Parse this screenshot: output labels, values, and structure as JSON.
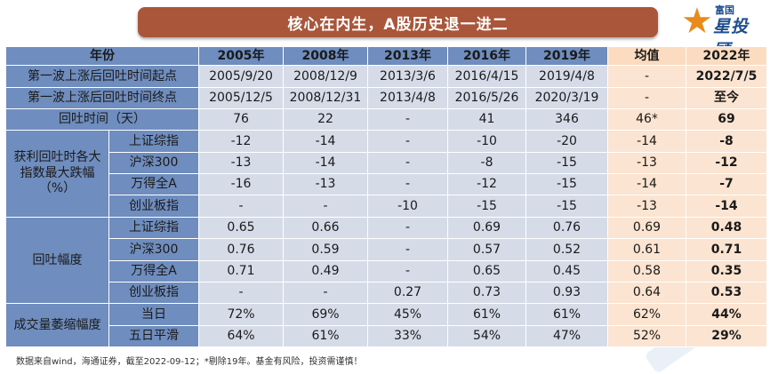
{
  "title": "核心在内生，A股历史退一进二",
  "logo": {
    "line1": "富国",
    "line2": "星投顾",
    "icon": "star-logo-icon"
  },
  "header": [
    "年份",
    "2005年",
    "2008年",
    "2013年",
    "2016年",
    "2019年",
    "均值",
    "2022年"
  ],
  "rows": {
    "start": {
      "label": "第一波上涨后回吐时间起点",
      "values": [
        "2005/9/20",
        "2008/12/9",
        "2013/3/6",
        "2016/4/15",
        "2019/4/8",
        "-",
        "2022/7/5"
      ]
    },
    "end": {
      "label": "第一波上涨后回吐时间终点",
      "values": [
        "2005/12/5",
        "2008/12/31",
        "2013/4/8",
        "2016/5/26",
        "2020/3/19",
        "-",
        "至今"
      ]
    },
    "duration": {
      "label": "回吐时间（天）",
      "values": [
        "76",
        "22",
        "-",
        "41",
        "346",
        "46*",
        "69"
      ]
    }
  },
  "drawdown": {
    "label": "获利回吐时各大指数最大跌幅（%）",
    "rows": [
      {
        "label": "上证综指",
        "values": [
          "-12",
          "-14",
          "-",
          "-10",
          "-20",
          "-14",
          "-8"
        ]
      },
      {
        "label": "沪深300",
        "values": [
          "-13",
          "-14",
          "-",
          "-8",
          "-15",
          "-13",
          "-12"
        ]
      },
      {
        "label": "万得全A",
        "values": [
          "-16",
          "-13",
          "-",
          "-12",
          "-15",
          "-14",
          "-7"
        ]
      },
      {
        "label": "创业板指",
        "values": [
          "-",
          "-",
          "-10",
          "-15",
          "-15",
          "-13",
          "-14"
        ]
      }
    ]
  },
  "retrace": {
    "label": "回吐幅度",
    "rows": [
      {
        "label": "上证综指",
        "values": [
          "0.65",
          "0.66",
          "-",
          "0.69",
          "0.76",
          "0.69",
          "0.48"
        ]
      },
      {
        "label": "沪深300",
        "values": [
          "0.76",
          "0.59",
          "-",
          "0.57",
          "0.52",
          "0.61",
          "0.71"
        ]
      },
      {
        "label": "万得全A",
        "values": [
          "0.71",
          "0.49",
          "-",
          "0.65",
          "0.45",
          "0.58",
          "0.35"
        ]
      },
      {
        "label": "创业板指",
        "values": [
          "-",
          "-",
          "0.27",
          "0.73",
          "0.93",
          "0.64",
          "0.53"
        ]
      }
    ]
  },
  "volume": {
    "label": "成交量萎缩幅度",
    "rows": [
      {
        "label": "当日",
        "values": [
          "72%",
          "69%",
          "45%",
          "61%",
          "61%",
          "62%",
          "44%"
        ]
      },
      {
        "label": "五日平滑",
        "values": [
          "64%",
          "61%",
          "33%",
          "54%",
          "47%",
          "52%",
          "29%"
        ]
      }
    ]
  },
  "footnote": "数据来自wind，海通证券，截至2022-09-12；*剔除19年。基金有风险，投资需谨慎！"
}
